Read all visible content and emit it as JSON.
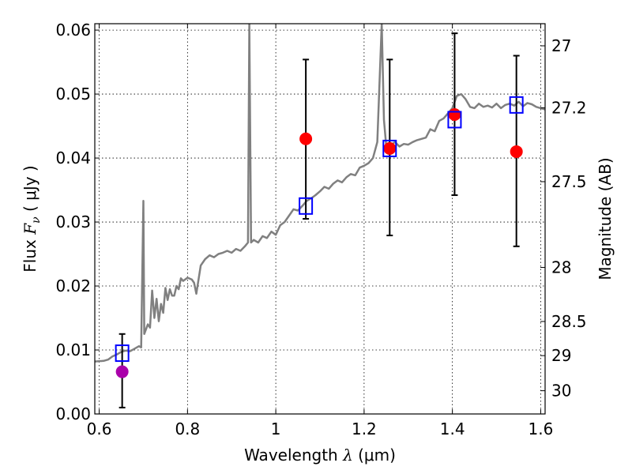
{
  "chart_data": {
    "type": "scatter",
    "xlabel": "Wavelength",
    "xlabel_symbol": "λ",
    "xlabel_unit": "(μm)",
    "ylabel": "Flux",
    "ylabel_symbol": "F",
    "ylabel_sub": "ν",
    "ylabel_unit": "( μJy )",
    "y2label": "Magnitude (AB)",
    "xlim": [
      0.59,
      1.61
    ],
    "ylim": [
      0.0,
      0.061
    ],
    "grid": true,
    "x_ticks": [
      {
        "v": 0.6,
        "label": "0.6"
      },
      {
        "v": 0.8,
        "label": "0.8"
      },
      {
        "v": 1.0,
        "label": "1"
      },
      {
        "v": 1.2,
        "label": "1.2"
      },
      {
        "v": 1.4,
        "label": "1.4"
      },
      {
        "v": 1.6,
        "label": "1.6"
      }
    ],
    "y_ticks": [
      {
        "v": 0.0,
        "label": "0.00"
      },
      {
        "v": 0.01,
        "label": "0.01"
      },
      {
        "v": 0.02,
        "label": "0.02"
      },
      {
        "v": 0.03,
        "label": "0.03"
      },
      {
        "v": 0.04,
        "label": "0.04"
      },
      {
        "v": 0.05,
        "label": "0.05"
      },
      {
        "v": 0.06,
        "label": "0.06"
      }
    ],
    "y2_ticks": [
      {
        "mag": 27,
        "label": "27"
      },
      {
        "mag": 27.2,
        "label": "27.2"
      },
      {
        "mag": 27.5,
        "label": "27.5"
      },
      {
        "mag": 28,
        "label": "28"
      },
      {
        "mag": 28.5,
        "label": "28.5"
      },
      {
        "mag": 29,
        "label": "29"
      },
      {
        "mag": 30,
        "label": "30"
      }
    ],
    "series": [
      {
        "kind": "line",
        "color": "#808080",
        "points": [
          [
            0.59,
            0.0082
          ],
          [
            0.61,
            0.0083
          ],
          [
            0.62,
            0.0085
          ],
          [
            0.63,
            0.009
          ],
          [
            0.64,
            0.0093
          ],
          [
            0.65,
            0.0097
          ],
          [
            0.66,
            0.0099
          ],
          [
            0.67,
            0.0098
          ],
          [
            0.68,
            0.0102
          ],
          [
            0.69,
            0.0106
          ],
          [
            0.695,
            0.0104
          ],
          [
            0.7,
            0.0333
          ],
          [
            0.702,
            0.0125
          ],
          [
            0.71,
            0.014
          ],
          [
            0.715,
            0.0135
          ],
          [
            0.72,
            0.0193
          ],
          [
            0.725,
            0.015
          ],
          [
            0.73,
            0.018
          ],
          [
            0.735,
            0.0145
          ],
          [
            0.74,
            0.0172
          ],
          [
            0.745,
            0.0158
          ],
          [
            0.75,
            0.0197
          ],
          [
            0.755,
            0.0178
          ],
          [
            0.76,
            0.0195
          ],
          [
            0.765,
            0.0185
          ],
          [
            0.77,
            0.0185
          ],
          [
            0.775,
            0.02
          ],
          [
            0.78,
            0.0195
          ],
          [
            0.785,
            0.0212
          ],
          [
            0.79,
            0.0208
          ],
          [
            0.8,
            0.0213
          ],
          [
            0.81,
            0.021
          ],
          [
            0.815,
            0.0205
          ],
          [
            0.82,
            0.0188
          ],
          [
            0.83,
            0.0232
          ],
          [
            0.84,
            0.0242
          ],
          [
            0.85,
            0.0248
          ],
          [
            0.86,
            0.0245
          ],
          [
            0.87,
            0.025
          ],
          [
            0.88,
            0.0252
          ],
          [
            0.89,
            0.0255
          ],
          [
            0.9,
            0.0252
          ],
          [
            0.91,
            0.0258
          ],
          [
            0.92,
            0.0255
          ],
          [
            0.93,
            0.0262
          ],
          [
            0.937,
            0.0268
          ],
          [
            0.94,
            0.061
          ],
          [
            0.944,
            0.0268
          ],
          [
            0.95,
            0.0272
          ],
          [
            0.96,
            0.0268
          ],
          [
            0.97,
            0.0278
          ],
          [
            0.98,
            0.0275
          ],
          [
            0.99,
            0.0285
          ],
          [
            1.0,
            0.028
          ],
          [
            1.01,
            0.0295
          ],
          [
            1.02,
            0.03
          ],
          [
            1.03,
            0.031
          ],
          [
            1.04,
            0.032
          ],
          [
            1.05,
            0.0318
          ],
          [
            1.06,
            0.0325
          ],
          [
            1.07,
            0.0333
          ],
          [
            1.08,
            0.0337
          ],
          [
            1.09,
            0.0342
          ],
          [
            1.1,
            0.0348
          ],
          [
            1.11,
            0.0355
          ],
          [
            1.12,
            0.0352
          ],
          [
            1.13,
            0.036
          ],
          [
            1.14,
            0.0365
          ],
          [
            1.15,
            0.0362
          ],
          [
            1.16,
            0.037
          ],
          [
            1.17,
            0.0375
          ],
          [
            1.18,
            0.0373
          ],
          [
            1.19,
            0.0385
          ],
          [
            1.2,
            0.0388
          ],
          [
            1.21,
            0.0392
          ],
          [
            1.22,
            0.04
          ],
          [
            1.23,
            0.0425
          ],
          [
            1.24,
            0.061
          ],
          [
            1.245,
            0.046
          ],
          [
            1.25,
            0.042
          ],
          [
            1.26,
            0.042
          ],
          [
            1.27,
            0.0425
          ],
          [
            1.28,
            0.0418
          ],
          [
            1.29,
            0.0422
          ],
          [
            1.3,
            0.0421
          ],
          [
            1.31,
            0.0425
          ],
          [
            1.32,
            0.0428
          ],
          [
            1.33,
            0.043
          ],
          [
            1.34,
            0.0432
          ],
          [
            1.35,
            0.0445
          ],
          [
            1.36,
            0.0442
          ],
          [
            1.37,
            0.0458
          ],
          [
            1.38,
            0.0462
          ],
          [
            1.39,
            0.047
          ],
          [
            1.4,
            0.0478
          ],
          [
            1.41,
            0.0497
          ],
          [
            1.42,
            0.05
          ],
          [
            1.43,
            0.0492
          ],
          [
            1.44,
            0.048
          ],
          [
            1.45,
            0.0478
          ],
          [
            1.46,
            0.0485
          ],
          [
            1.47,
            0.048
          ],
          [
            1.48,
            0.0482
          ],
          [
            1.49,
            0.0479
          ],
          [
            1.5,
            0.0485
          ],
          [
            1.51,
            0.0478
          ],
          [
            1.52,
            0.0483
          ],
          [
            1.53,
            0.0485
          ],
          [
            1.54,
            0.0482
          ],
          [
            1.55,
            0.0488
          ],
          [
            1.56,
            0.0481
          ],
          [
            1.57,
            0.0486
          ],
          [
            1.58,
            0.0484
          ],
          [
            1.59,
            0.048
          ],
          [
            1.6,
            0.0478
          ],
          [
            1.61,
            0.0476
          ]
        ]
      },
      {
        "kind": "points",
        "marker": "circle",
        "points": [
          {
            "x": 0.652,
            "y": 0.0066,
            "yerr_low": 0.001,
            "yerr_high": 0.0125,
            "color": "#aa00aa"
          },
          {
            "x": 1.068,
            "y": 0.043,
            "yerr_low": 0.0305,
            "yerr_high": 0.0554,
            "color": "#ff0000"
          },
          {
            "x": 1.258,
            "y": 0.0415,
            "yerr_low": 0.0279,
            "yerr_high": 0.0554,
            "color": "#ff0000"
          },
          {
            "x": 1.405,
            "y": 0.0468,
            "yerr_low": 0.0342,
            "yerr_high": 0.0595,
            "color": "#ff0000"
          },
          {
            "x": 1.545,
            "y": 0.041,
            "yerr_low": 0.0262,
            "yerr_high": 0.056,
            "color": "#ff0000"
          }
        ]
      },
      {
        "kind": "points",
        "marker": "square",
        "color": "#0000ff",
        "points": [
          {
            "x": 0.652,
            "y": 0.0095
          },
          {
            "x": 1.068,
            "y": 0.0325
          },
          {
            "x": 1.258,
            "y": 0.0415
          },
          {
            "x": 1.405,
            "y": 0.046
          },
          {
            "x": 1.545,
            "y": 0.0483
          }
        ]
      }
    ]
  }
}
